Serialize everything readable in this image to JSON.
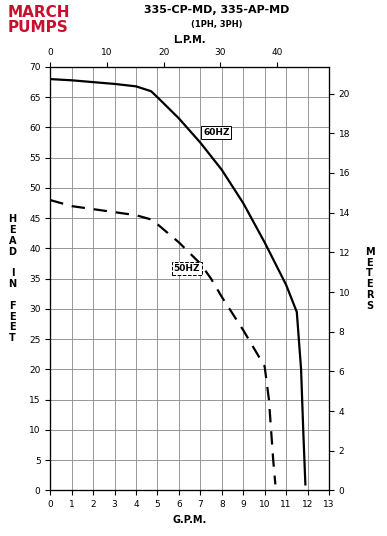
{
  "logo": [
    "MARCH",
    "PUMPS"
  ],
  "chart_data": {
    "type": "line",
    "title": "335-CP-MD, 335-AP-MD",
    "subtitle": "(1PH, 3PH)",
    "x_label": "G.P.M.",
    "x2_label": "L.P.M.",
    "y_label": "HEAD IN FEET",
    "y2_label": "METERS",
    "xlim": [
      0,
      13
    ],
    "xticks": [
      0,
      1,
      2,
      3,
      4,
      5,
      6,
      7,
      8,
      9,
      10,
      11,
      12,
      13
    ],
    "x2lim": [
      0,
      49.21
    ],
    "x2ticks": [
      0,
      10,
      20,
      30,
      40
    ],
    "ylim": [
      0,
      70
    ],
    "yticks": [
      0,
      5,
      10,
      15,
      20,
      25,
      30,
      35,
      40,
      45,
      50,
      55,
      60,
      65,
      70
    ],
    "y2lim": [
      0,
      21.34
    ],
    "y2ticks": [
      0,
      2,
      4,
      6,
      8,
      10,
      12,
      14,
      16,
      18,
      20
    ],
    "grid": true,
    "series": [
      {
        "name": "60HZ",
        "color": "#000000",
        "line_style": "solid",
        "x": [
          0,
          1,
          2,
          3,
          4,
          4.7,
          5,
          6,
          7,
          8,
          9,
          10,
          11,
          11.5,
          11.7,
          11.8,
          11.9
        ],
        "values": [
          68,
          67.8,
          67.5,
          67.2,
          66.8,
          66,
          65,
          61.5,
          57.5,
          53,
          47.5,
          41,
          34,
          29.5,
          20,
          10,
          1
        ]
      },
      {
        "name": "50HZ",
        "color": "#000000",
        "line_style": "dashed",
        "x": [
          0,
          1,
          2,
          3,
          4,
          4.7,
          5,
          6,
          7,
          7.5,
          8,
          9,
          10,
          10.2,
          10.4,
          10.5
        ],
        "values": [
          48,
          47,
          46.5,
          46,
          45.5,
          44.8,
          44,
          41,
          37.5,
          35,
          32,
          26.5,
          20.5,
          15,
          5,
          1
        ]
      }
    ]
  }
}
